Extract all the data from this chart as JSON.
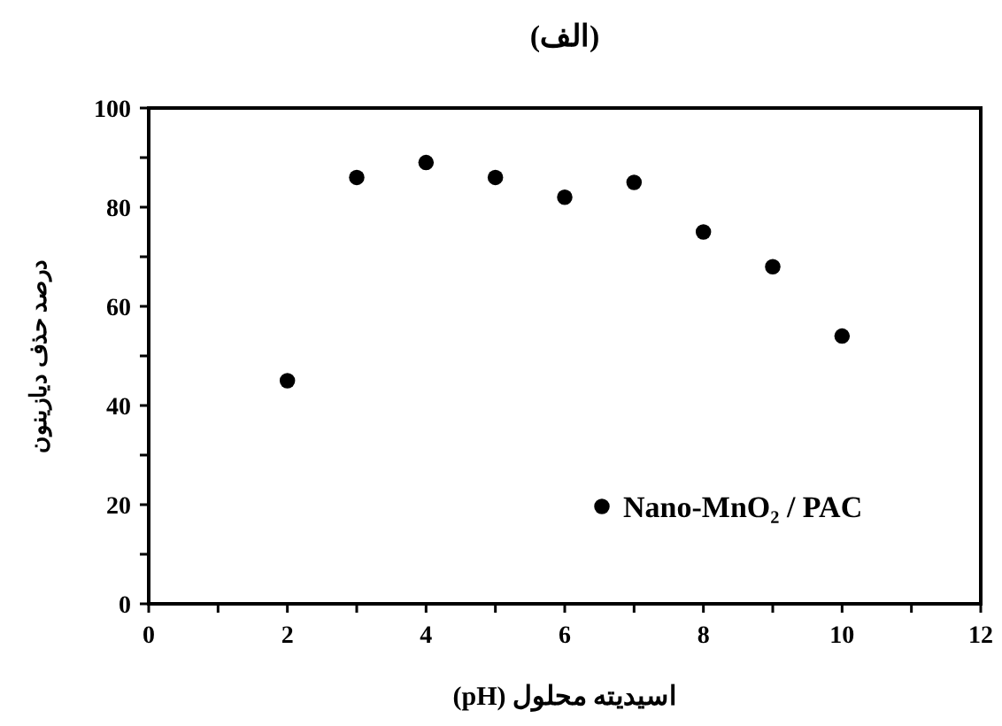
{
  "chart_data": {
    "type": "scatter",
    "title": "(الف)",
    "xlabel": "اسیدیته محلول (pH)",
    "ylabel": "درصد حذف دیازینون",
    "x": [
      2,
      3,
      4,
      5,
      6,
      7,
      8,
      9,
      10
    ],
    "series": [
      {
        "name": "Nano-MnO₂ / PAC",
        "color": "#000000",
        "values": [
          45,
          86,
          89,
          86,
          82,
          85,
          75,
          68,
          54
        ]
      }
    ],
    "xlim": [
      0,
      12
    ],
    "xticks": [
      0,
      {
        "value": 1,
        "label": null
      },
      2,
      {
        "value": 3,
        "label": null
      },
      4,
      {
        "value": 5,
        "label": null
      },
      6,
      {
        "value": 7,
        "label": null
      },
      8,
      {
        "value": 9,
        "label": null
      },
      10,
      {
        "value": 11,
        "label": null
      },
      12
    ],
    "ylim": [
      0,
      100
    ],
    "yticks": [
      0,
      {
        "value": 10,
        "label": null
      },
      20,
      {
        "value": 30,
        "label": null
      },
      40,
      {
        "value": 50,
        "label": null
      },
      60,
      {
        "value": 70,
        "label": null
      },
      80,
      {
        "value": 90,
        "label": null
      },
      100
    ],
    "grid": false,
    "legend": "bottom right",
    "marker": "circle"
  }
}
